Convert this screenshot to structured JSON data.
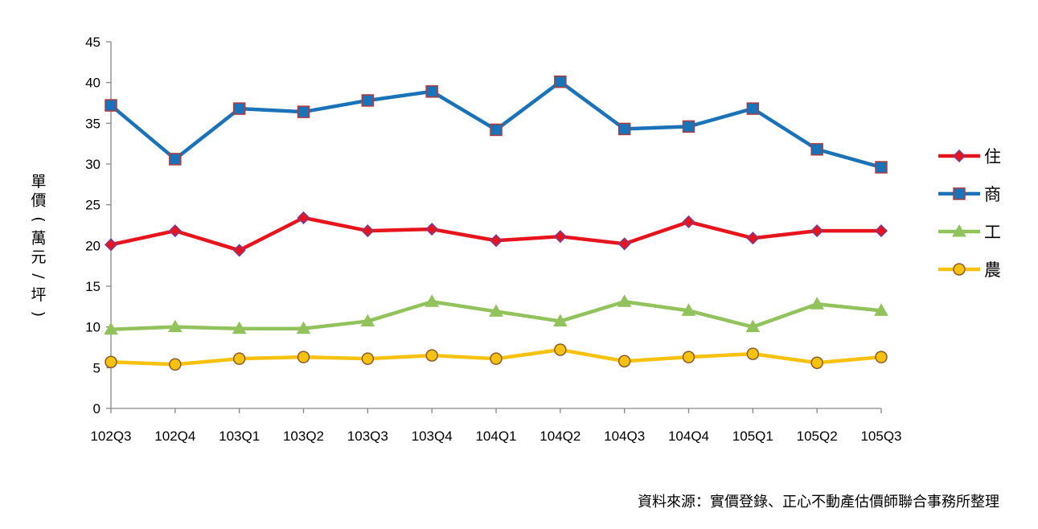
{
  "chart_data": {
    "type": "line",
    "categories": [
      "102Q3",
      "102Q4",
      "103Q1",
      "103Q2",
      "103Q3",
      "103Q4",
      "104Q1",
      "104Q2",
      "104Q3",
      "104Q4",
      "105Q1",
      "105Q2",
      "105Q3"
    ],
    "ylabel": "單價(萬元/坪)",
    "ylim": [
      0,
      45
    ],
    "yticks": [
      0,
      5,
      10,
      15,
      20,
      25,
      30,
      35,
      40,
      45
    ],
    "grid": false,
    "legend_position": "right",
    "series": [
      {
        "name": "住",
        "color": "#e8141c",
        "marker": "diamond",
        "marker_fill": "#e8141c",
        "marker_stroke": "#7b3a8f",
        "values": [
          20.1,
          21.8,
          19.4,
          23.4,
          21.8,
          22.0,
          20.6,
          21.1,
          20.2,
          22.9,
          20.9,
          21.8,
          21.8
        ]
      },
      {
        "name": "商",
        "color": "#1a72b8",
        "marker": "square",
        "marker_fill": "#1a72b8",
        "marker_stroke": "#b03a3a",
        "values": [
          37.2,
          30.6,
          36.8,
          36.4,
          37.8,
          38.9,
          34.2,
          40.1,
          34.3,
          34.6,
          36.8,
          31.8,
          29.6
        ]
      },
      {
        "name": "工",
        "color": "#92c25c",
        "marker": "triangle",
        "marker_fill": "#92c25c",
        "marker_stroke": "#92c25c",
        "values": [
          9.7,
          10.0,
          9.8,
          9.8,
          10.7,
          13.1,
          11.9,
          10.7,
          13.1,
          12.0,
          10.0,
          12.8,
          12.0
        ]
      },
      {
        "name": "農",
        "color": "#f7c20f",
        "marker": "circle",
        "marker_fill": "#f7c20f",
        "marker_stroke": "#8a5a2a",
        "values": [
          5.7,
          5.4,
          6.1,
          6.3,
          6.1,
          6.5,
          6.1,
          7.2,
          5.8,
          6.3,
          6.7,
          5.6,
          6.3
        ]
      }
    ]
  },
  "source_note": "資料來源：實價登錄、正心不動產估價師聯合事務所整理"
}
